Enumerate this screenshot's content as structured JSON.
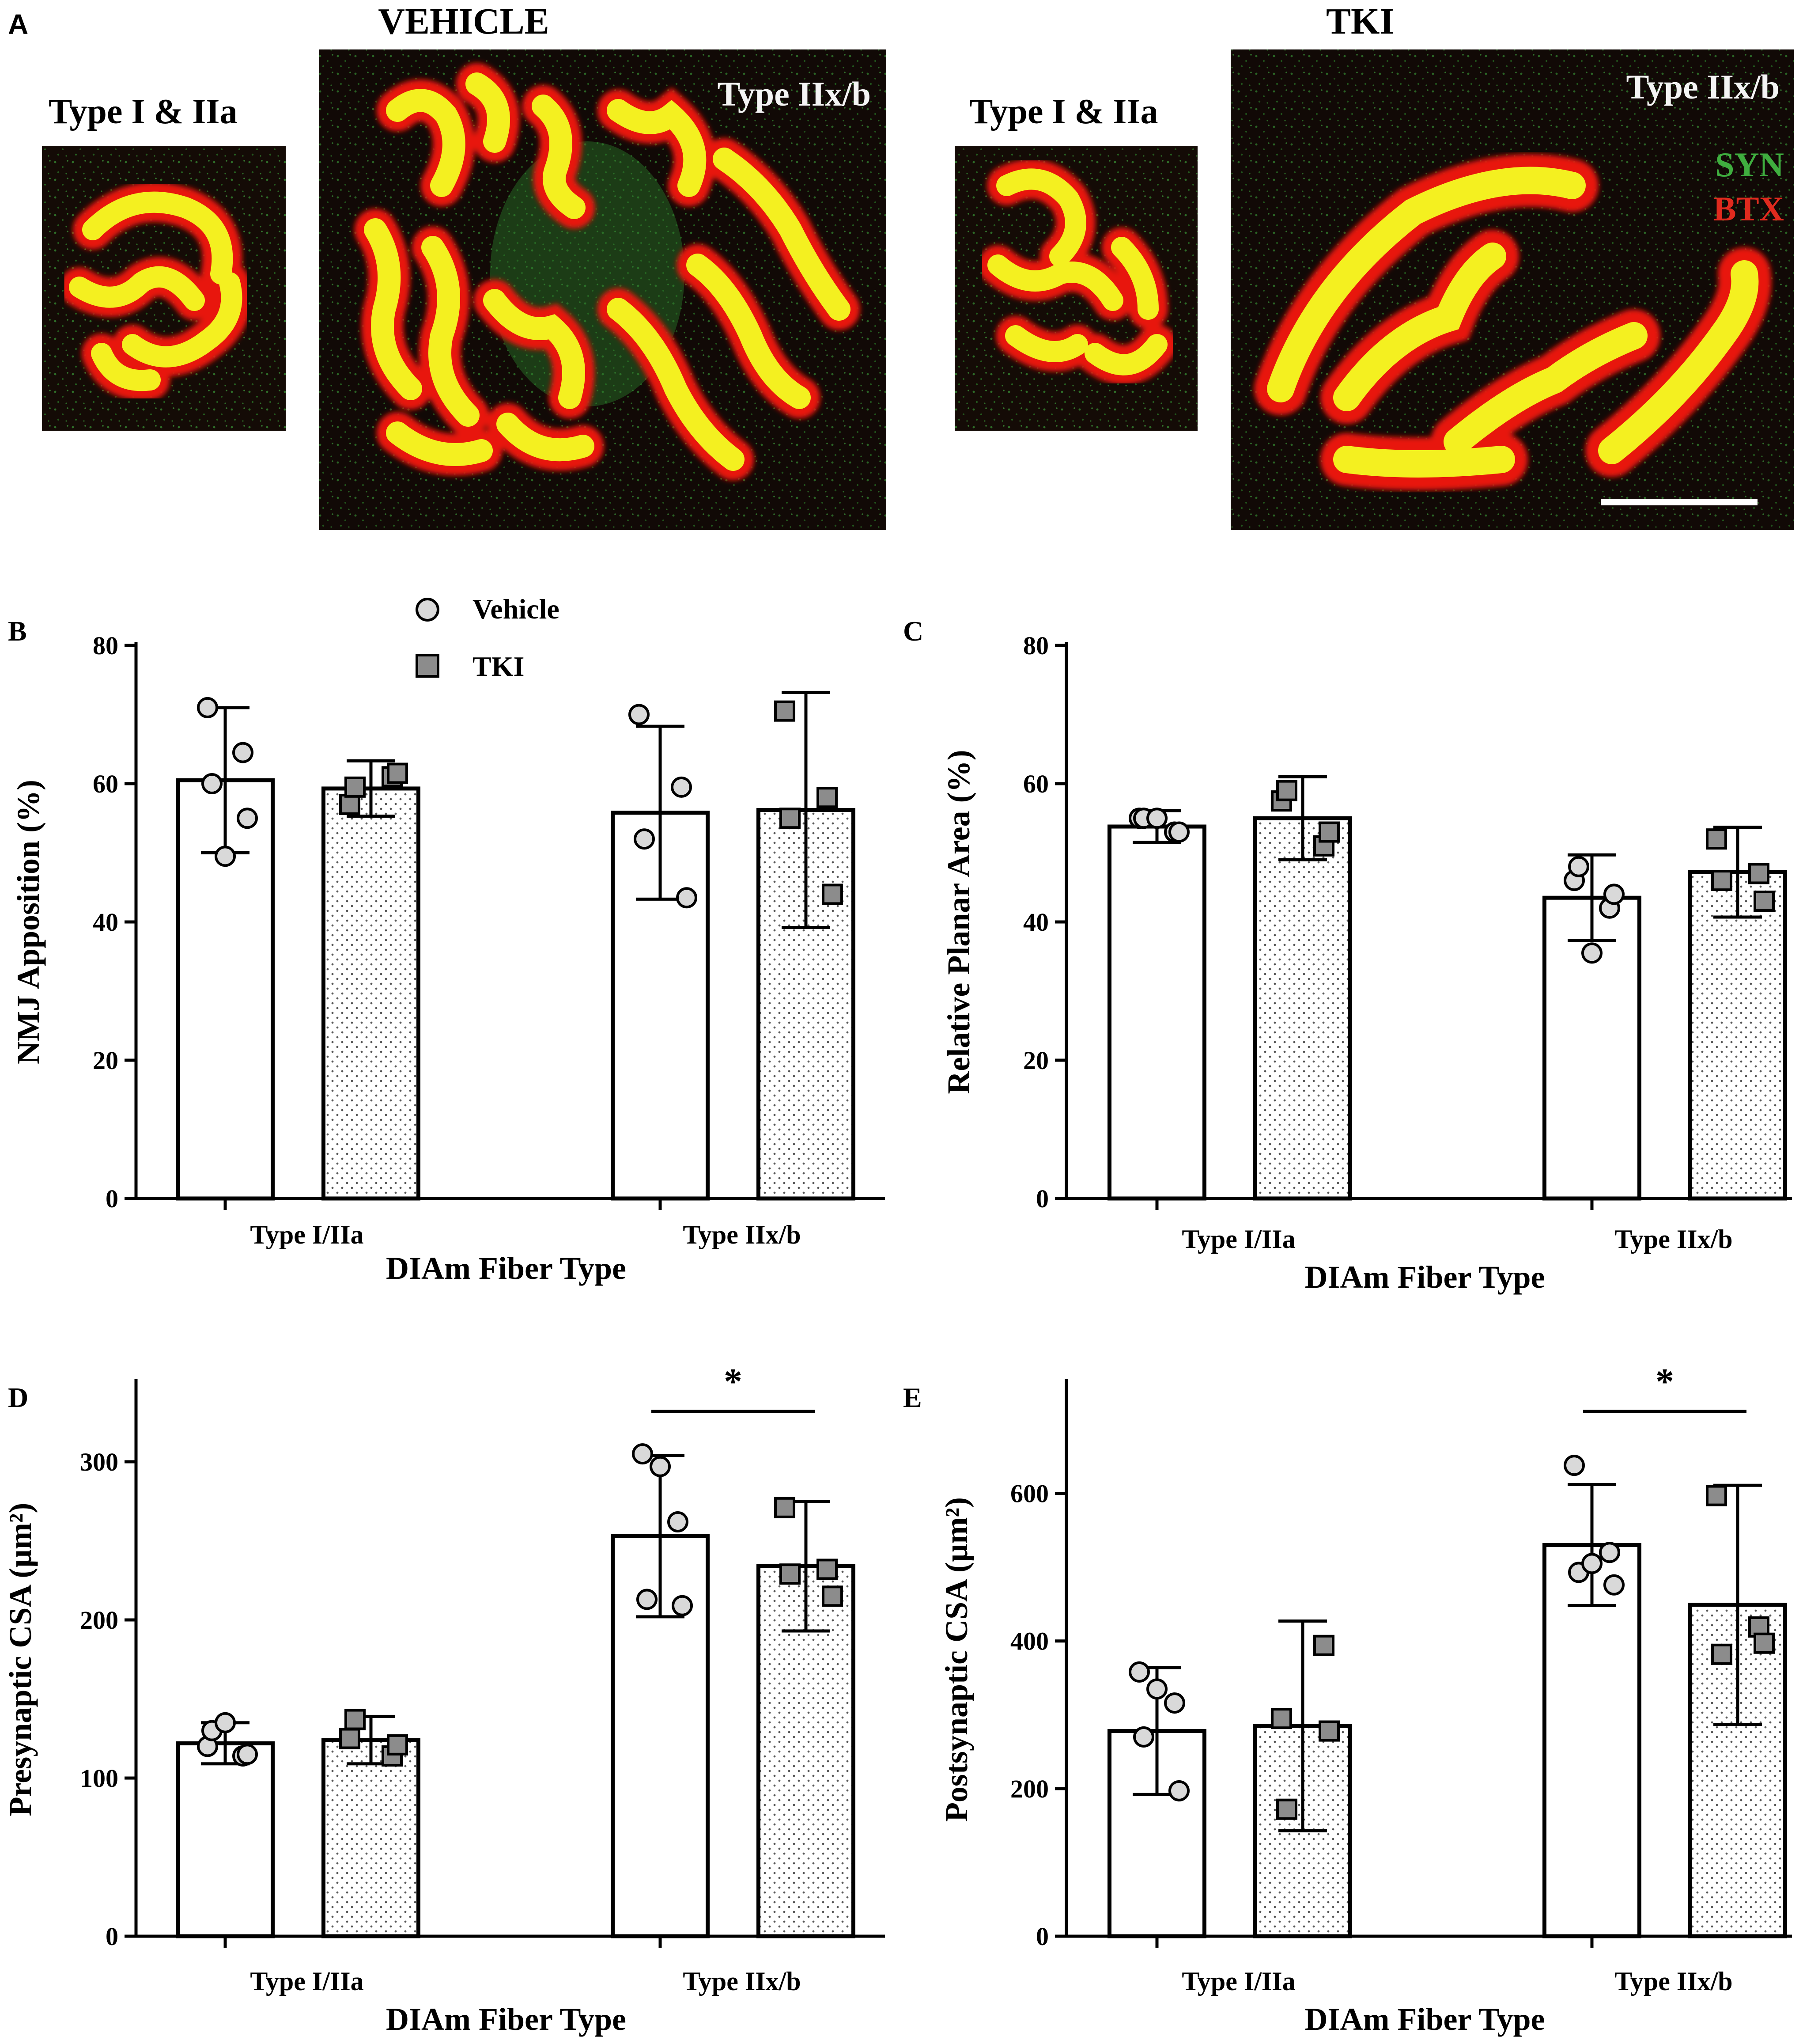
{
  "panel_a": {
    "letter": "A",
    "vehicle_title": "VEHICLE",
    "tki_title": "TKI",
    "small_label_vehicle": "Type I & IIa",
    "large_label_vehicle": "Type IIx/b",
    "small_label_tki": "Type I & IIa",
    "large_label_tki": "Type IIx/b",
    "syn_label": "SYN",
    "btx_label": "BTX",
    "colors": {
      "syn": "#3fae3f",
      "btx": "#e02a1e",
      "yellow": "#f4f020",
      "red": "#e8150f",
      "bg": "#120a06"
    }
  },
  "legend": {
    "vehicle": "Vehicle",
    "tki": "TKI"
  },
  "chart_data": [
    {
      "panel": "B",
      "type": "bar",
      "categories": [
        "Type I/IIa",
        "Type IIx/b"
      ],
      "xlabel": "DIAm Fiber Type",
      "ylabel": "NMJ Apposition (%)",
      "ylim": [
        0,
        80
      ],
      "yticks": [
        0,
        20,
        40,
        60,
        80
      ],
      "series": [
        {
          "name": "Vehicle",
          "values": [
            60.5,
            55.8
          ],
          "sd": [
            10.5,
            12.5
          ],
          "points": [
            [
              71,
              64.5,
              60,
              55,
              49.5
            ],
            [
              70,
              59.5,
              52,
              43.5
            ]
          ]
        },
        {
          "name": "TKI",
          "values": [
            59.3,
            56.2
          ],
          "sd": [
            4,
            17
          ],
          "points": [
            [
              57,
              61,
              59.5,
              61.5
            ],
            [
              70.5,
              58,
              55,
              44
            ]
          ]
        }
      ],
      "significance": null
    },
    {
      "panel": "C",
      "type": "bar",
      "categories": [
        "Type I/IIa",
        "Type IIx/b"
      ],
      "xlabel": "DIAm Fiber Type",
      "ylabel": "Relative Planar Area (%)",
      "ylim": [
        0,
        80
      ],
      "yticks": [
        0,
        20,
        40,
        60,
        80
      ],
      "series": [
        {
          "name": "Vehicle",
          "values": [
            53.8,
            43.5
          ],
          "sd": [
            2.3,
            6.2
          ],
          "points": [
            [
              55,
              53,
              55,
              53,
              55
            ],
            [
              46,
              42,
              48,
              44,
              35.5
            ]
          ]
        },
        {
          "name": "TKI",
          "values": [
            55,
            47.2
          ],
          "sd": [
            6,
            6.5
          ],
          "points": [
            [
              57.5,
              51,
              59,
              53
            ],
            [
              52,
              47,
              46,
              43
            ]
          ]
        }
      ],
      "significance": null
    },
    {
      "panel": "D",
      "type": "bar",
      "categories": [
        "Type I/IIa",
        "Type IIx/b"
      ],
      "xlabel": "DIAm Fiber Type",
      "ylabel": "Presynaptic CSA (µm²)",
      "ylim": [
        0,
        350
      ],
      "yticks": [
        0,
        100,
        200,
        300
      ],
      "series": [
        {
          "name": "Vehicle",
          "values": [
            122,
            253
          ],
          "sd": [
            13,
            51
          ],
          "points": [
            [
              120,
              114,
              130,
              115,
              135
            ],
            [
              305,
              262,
              213,
              209,
              297
            ]
          ]
        },
        {
          "name": "TKI",
          "values": [
            124,
            234
          ],
          "sd": [
            15,
            41
          ],
          "points": [
            [
              125,
              114,
              137,
              121
            ],
            [
              271,
              232,
              229,
              215
            ]
          ]
        }
      ],
      "significance": {
        "pair": "Type IIx/b",
        "label": "*"
      }
    },
    {
      "panel": "E",
      "type": "bar",
      "categories": [
        "Type I/IIa",
        "Type IIx/b"
      ],
      "xlabel": "DIAm Fiber Type",
      "ylabel": "Postsynaptic CSA (µm²)",
      "ylim": [
        0,
        750
      ],
      "yticks": [
        0,
        200,
        400,
        600
      ],
      "series": [
        {
          "name": "Vehicle",
          "values": [
            278,
            530
          ],
          "sd": [
            86,
            82
          ],
          "points": [
            [
              358,
              316,
              270,
              197,
              335
            ],
            [
              638,
              520,
              493,
              476,
              505
            ]
          ]
        },
        {
          "name": "TKI",
          "values": [
            285,
            449
          ],
          "sd": [
            142,
            162
          ],
          "points": [
            [
              295,
              394,
              172,
              278
            ],
            [
              597,
              419,
              382,
              397
            ]
          ]
        }
      ],
      "significance": {
        "pair": "Type IIx/b",
        "label": "*"
      }
    }
  ]
}
